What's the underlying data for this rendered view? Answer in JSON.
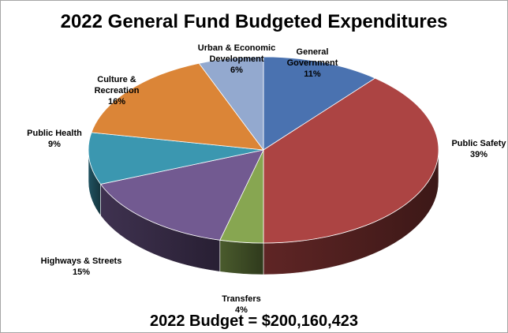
{
  "chart_data": {
    "type": "pie",
    "title": "2022 General Fund Budgeted Expenditures",
    "footer": "2022 Budget = $200,160,423",
    "slices": [
      {
        "label": [
          "General",
          "Government"
        ],
        "pct": "11%",
        "value": 11,
        "color": "#4a72b0"
      },
      {
        "label": [
          "Public Safety"
        ],
        "pct": "39%",
        "value": 39,
        "color": "#ac4443"
      },
      {
        "label": [
          "Transfers"
        ],
        "pct": "4%",
        "value": 4,
        "color": "#87a651"
      },
      {
        "label": [
          "Highways & Streets"
        ],
        "pct": "15%",
        "value": 15,
        "color": "#725a91"
      },
      {
        "label": [
          "Public Health"
        ],
        "pct": "9%",
        "value": 9,
        "color": "#3b97b0"
      },
      {
        "label": [
          "Culture &",
          "Recreation"
        ],
        "pct": "16%",
        "value": 16,
        "color": "#db8537"
      },
      {
        "label": [
          "Urban & Economic",
          "Development"
        ],
        "pct": "6%",
        "value": 6,
        "color": "#93a9cf"
      }
    ]
  }
}
